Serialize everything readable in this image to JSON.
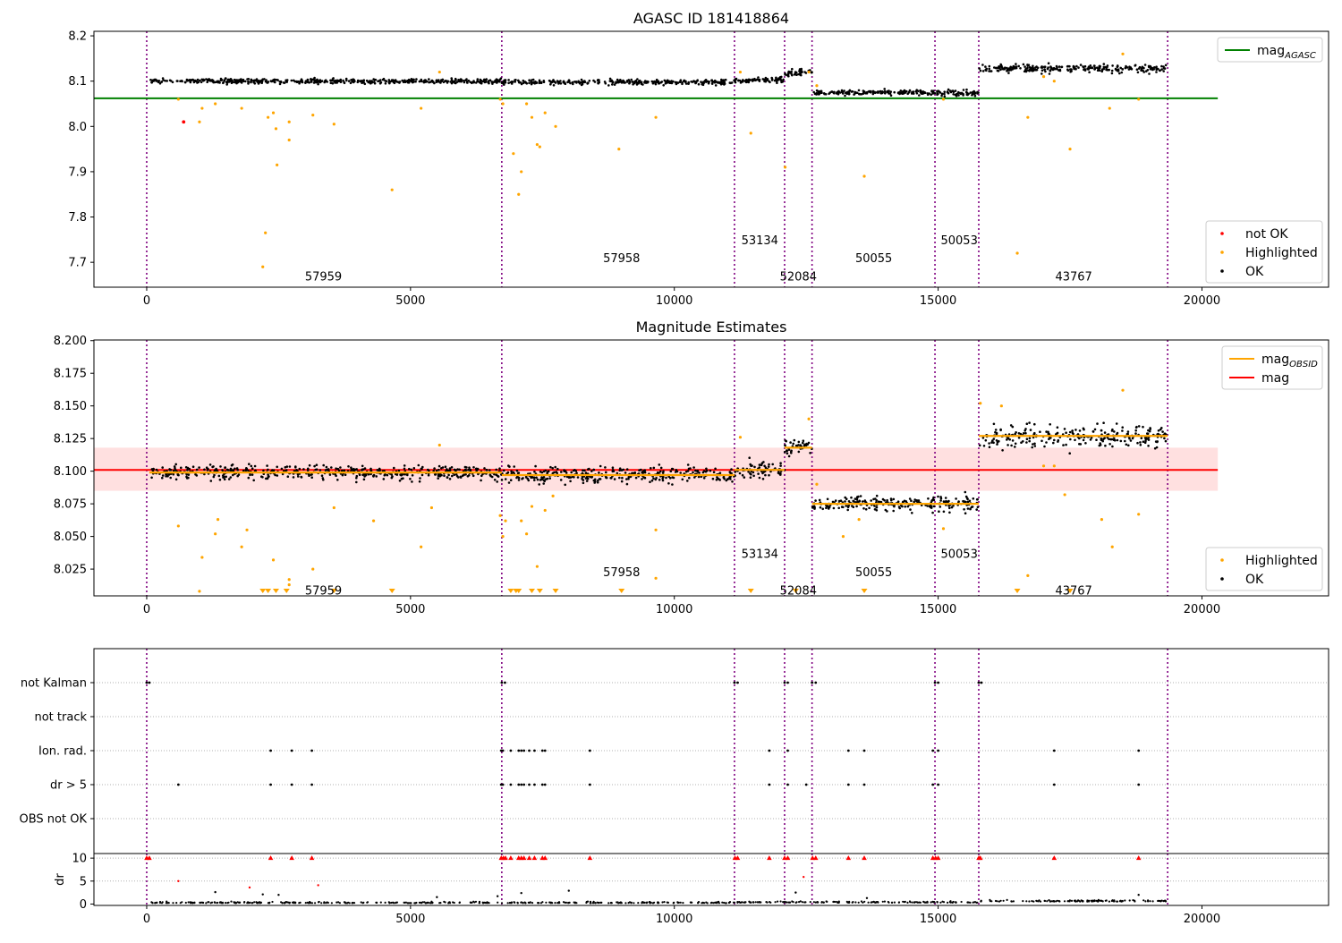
{
  "chart_data": [
    {
      "type": "scatter",
      "title": "AGASC ID 181418864",
      "xlim": [
        -1000,
        22400
      ],
      "ylim": [
        7.645,
        8.21
      ],
      "xticks": [
        0,
        5000,
        10000,
        15000,
        20000
      ],
      "yticks": [
        7.7,
        7.8,
        7.9,
        8.0,
        8.1,
        8.2
      ],
      "ytick_labels": [
        "7.7",
        "7.8",
        "7.9",
        "8.0",
        "8.1",
        "8.2"
      ],
      "obs_boundaries": [
        0,
        6730,
        11140,
        12090,
        12610,
        14940,
        15770,
        19350
      ],
      "obs_labels": [
        {
          "text": "57959",
          "x": 3350,
          "y": 7.67
        },
        {
          "text": "57958",
          "x": 9000,
          "y": 7.71
        },
        {
          "text": "53134",
          "x": 11620,
          "y": 7.75
        },
        {
          "text": "52084",
          "x": 12350,
          "y": 7.67
        },
        {
          "text": "50055",
          "x": 13780,
          "y": 7.71
        },
        {
          "text": "50053",
          "x": 15400,
          "y": 7.75
        },
        {
          "text": "43767",
          "x": 17570,
          "y": 7.67
        }
      ],
      "segments": [
        {
          "obsid": "57959",
          "x0": 50,
          "x1": 6730,
          "mean": 8.1,
          "spread": 0.006
        },
        {
          "obsid": "57958",
          "x0": 6730,
          "x1": 11140,
          "mean": 8.098,
          "spread": 0.006
        },
        {
          "obsid": "53134",
          "x0": 11140,
          "x1": 12090,
          "mean": 8.102,
          "spread": 0.007
        },
        {
          "obsid": "52084",
          "x0": 12090,
          "x1": 12610,
          "mean": 8.118,
          "spread": 0.008
        },
        {
          "obsid": "50055",
          "x0": 12610,
          "x1": 14940,
          "mean": 8.075,
          "spread": 0.006
        },
        {
          "obsid": "50053",
          "x0": 14940,
          "x1": 15770,
          "mean": 8.074,
          "spread": 0.007
        },
        {
          "obsid": "43767",
          "x0": 15770,
          "x1": 19350,
          "mean": 8.128,
          "spread": 0.009
        }
      ],
      "highlighted": [
        [
          600,
          8.06
        ],
        [
          1000,
          8.01
        ],
        [
          1050,
          8.04
        ],
        [
          1300,
          8.05
        ],
        [
          1800,
          8.04
        ],
        [
          2200,
          7.69
        ],
        [
          2250,
          7.765
        ],
        [
          2300,
          8.02
        ],
        [
          2400,
          8.03
        ],
        [
          2450,
          7.995
        ],
        [
          2470,
          7.915
        ],
        [
          2700,
          7.97
        ],
        [
          2700,
          8.01
        ],
        [
          3150,
          8.025
        ],
        [
          3550,
          8.005
        ],
        [
          4650,
          7.86
        ],
        [
          5200,
          8.04
        ],
        [
          5550,
          8.12
        ],
        [
          6700,
          8.06
        ],
        [
          6750,
          8.05
        ],
        [
          6950,
          7.94
        ],
        [
          7050,
          7.85
        ],
        [
          7100,
          7.9
        ],
        [
          7200,
          8.05
        ],
        [
          7300,
          8.02
        ],
        [
          7400,
          7.96
        ],
        [
          7450,
          7.955
        ],
        [
          7550,
          8.03
        ],
        [
          7750,
          8.0
        ],
        [
          8950,
          7.95
        ],
        [
          9650,
          8.02
        ],
        [
          11250,
          8.12
        ],
        [
          11450,
          7.985
        ],
        [
          12100,
          7.91
        ],
        [
          12550,
          8.12
        ],
        [
          12700,
          8.09
        ],
        [
          13600,
          7.89
        ],
        [
          15100,
          8.06
        ],
        [
          16700,
          8.02
        ],
        [
          16500,
          7.72
        ],
        [
          17000,
          8.11
        ],
        [
          17200,
          8.1
        ],
        [
          17500,
          7.95
        ],
        [
          18250,
          8.04
        ],
        [
          18500,
          8.16
        ],
        [
          18800,
          8.06
        ]
      ],
      "not_ok": [
        [
          700,
          8.01
        ]
      ],
      "hlines": [
        {
          "name": "mag_AGASC",
          "y": 8.062,
          "x0": -1000,
          "x1": 20300,
          "color": "#008000"
        }
      ],
      "legend_top": [
        {
          "label": "mag",
          "sub": "AGASC",
          "color": "#008000"
        }
      ],
      "legend_bottom": [
        {
          "label": "not OK",
          "color": "#ff0000"
        },
        {
          "label": "Highlighted",
          "color": "#ffa500"
        },
        {
          "label": "OK",
          "color": "#000000"
        }
      ]
    },
    {
      "type": "scatter",
      "title": "Magnitude Estimates",
      "xlim": [
        -1000,
        22400
      ],
      "ylim": [
        8.0045,
        8.2005
      ],
      "xticks": [
        0,
        5000,
        10000,
        15000,
        20000
      ],
      "yticks": [
        8.025,
        8.05,
        8.075,
        8.1,
        8.125,
        8.15,
        8.175,
        8.2
      ],
      "ytick_labels": [
        "8.025",
        "8.050",
        "8.075",
        "8.100",
        "8.125",
        "8.150",
        "8.175",
        "8.200"
      ],
      "obs_boundaries": [
        0,
        6730,
        11140,
        12090,
        12610,
        14940,
        15770,
        19350
      ],
      "obs_labels": [
        {
          "text": "57959",
          "x": 3350,
          "y": 8.009
        },
        {
          "text": "57958",
          "x": 9000,
          "y": 8.023
        },
        {
          "text": "53134",
          "x": 11620,
          "y": 8.037
        },
        {
          "text": "52084",
          "x": 12350,
          "y": 8.009
        },
        {
          "text": "50055",
          "x": 13780,
          "y": 8.023
        },
        {
          "text": "50053",
          "x": 15400,
          "y": 8.037
        },
        {
          "text": "43767",
          "x": 17570,
          "y": 8.009
        }
      ],
      "segments": [
        {
          "obsid": "57959",
          "x0": 50,
          "x1": 6730,
          "mean": 8.099,
          "spread": 0.006
        },
        {
          "obsid": "57958",
          "x0": 6730,
          "x1": 11140,
          "mean": 8.097,
          "spread": 0.006
        },
        {
          "obsid": "53134",
          "x0": 11140,
          "x1": 12090,
          "mean": 8.101,
          "spread": 0.007
        },
        {
          "obsid": "52084",
          "x0": 12090,
          "x1": 12610,
          "mean": 8.118,
          "spread": 0.008
        },
        {
          "obsid": "50055",
          "x0": 12610,
          "x1": 14940,
          "mean": 8.075,
          "spread": 0.006
        },
        {
          "obsid": "50053",
          "x0": 14940,
          "x1": 15770,
          "mean": 8.075,
          "spread": 0.007
        },
        {
          "obsid": "43767",
          "x0": 15770,
          "x1": 19350,
          "mean": 8.127,
          "spread": 0.009
        }
      ],
      "highlighted": [
        [
          600,
          8.058
        ],
        [
          1000,
          8.008
        ],
        [
          1050,
          8.034
        ],
        [
          1300,
          8.052
        ],
        [
          1350,
          8.063
        ],
        [
          1800,
          8.042
        ],
        [
          1900,
          8.055
        ],
        [
          2400,
          8.032
        ],
        [
          2700,
          8.017
        ],
        [
          2700,
          8.013
        ],
        [
          3150,
          8.025
        ],
        [
          3550,
          8.072
        ],
        [
          4300,
          8.062
        ],
        [
          5200,
          8.042
        ],
        [
          5550,
          8.12
        ],
        [
          5400,
          8.072
        ],
        [
          6700,
          8.066
        ],
        [
          6750,
          8.05
        ],
        [
          6800,
          8.062
        ],
        [
          7100,
          8.062
        ],
        [
          7200,
          8.052
        ],
        [
          7300,
          8.073
        ],
        [
          7400,
          8.027
        ],
        [
          7550,
          8.07
        ],
        [
          7700,
          8.081
        ],
        [
          9650,
          8.055
        ],
        [
          9650,
          8.018
        ],
        [
          11250,
          8.126
        ],
        [
          12550,
          8.14
        ],
        [
          12700,
          8.09
        ],
        [
          13200,
          8.05
        ],
        [
          13500,
          8.063
        ],
        [
          15100,
          8.056
        ],
        [
          15800,
          8.152
        ],
        [
          16200,
          8.15
        ],
        [
          16700,
          8.02
        ],
        [
          17000,
          8.104
        ],
        [
          17200,
          8.104
        ],
        [
          17400,
          8.082
        ],
        [
          18100,
          8.063
        ],
        [
          18300,
          8.042
        ],
        [
          18500,
          8.162
        ],
        [
          18800,
          8.067
        ]
      ],
      "downflags": [
        2200,
        2300,
        2450,
        2650,
        3550,
        4650,
        6900,
        7000,
        7050,
        7300,
        7450,
        7750,
        9000,
        11450,
        12300,
        13600,
        16500,
        17500
      ],
      "band": {
        "y0": 8.085,
        "y1": 8.118,
        "x0": -1000,
        "x1": 20300
      },
      "hlines": [
        {
          "name": "mag",
          "y": 8.101,
          "x0": -1000,
          "x1": 20300,
          "color": "#ff0000"
        }
      ],
      "legend_top": [
        {
          "label": "mag",
          "sub": "OBSID",
          "color": "#ffa500"
        },
        {
          "label": "mag",
          "sub": "",
          "color": "#ff0000"
        }
      ],
      "legend_bottom": [
        {
          "label": "Highlighted",
          "color": "#ffa500"
        },
        {
          "label": "OK",
          "color": "#000000"
        }
      ]
    },
    {
      "type": "scatter",
      "title": "",
      "xlim": [
        -1000,
        22400
      ],
      "xticks": [
        0,
        5000,
        10000,
        15000,
        20000
      ],
      "obs_boundaries": [
        0,
        6730,
        11140,
        12090,
        12610,
        14940,
        15770,
        19350
      ],
      "flag_rows": [
        "not Kalman",
        "not track",
        "Ion. rad.",
        "dr > 5",
        "OBS not OK"
      ],
      "flag_events": {
        "not Kalman": [
          0,
          50,
          6730,
          6790,
          11140,
          11200,
          12090,
          12150,
          12610,
          12680,
          14940,
          15000,
          15770,
          15820
        ],
        "not track": [],
        "Ion. rad.": [
          2350,
          2750,
          3130,
          6720,
          6750,
          6900,
          7050,
          7100,
          7150,
          7250,
          7350,
          7500,
          7550,
          8400,
          11800,
          12150,
          13300,
          13600,
          14900,
          15000,
          17200,
          18800
        ],
        "dr > 5": [
          600,
          2350,
          2750,
          3130,
          6720,
          6750,
          6900,
          7050,
          7100,
          7150,
          7250,
          7350,
          7500,
          7550,
          8400,
          11800,
          12150,
          12500,
          13300,
          13600,
          14900,
          15000,
          17200,
          18800
        ],
        "OBS not OK": []
      },
      "dr": {
        "ylim": [
          -0.3,
          11.0
        ],
        "yticks": [
          0,
          5,
          10
        ],
        "ylabel": "dr",
        "outliers": [
          [
            600,
            5.0
          ],
          [
            1300,
            2.6
          ],
          [
            1950,
            3.6
          ],
          [
            2200,
            2.1
          ],
          [
            2500,
            2.0
          ],
          [
            3250,
            4.1
          ],
          [
            5500,
            1.5
          ],
          [
            6650,
            1.7
          ],
          [
            7100,
            2.4
          ],
          [
            8000,
            2.9
          ],
          [
            12300,
            2.5
          ],
          [
            12450,
            5.9
          ],
          [
            13650,
            1.3
          ],
          [
            18800,
            2.0
          ]
        ],
        "red_at_cap": [
          0,
          50,
          2350,
          2750,
          3130,
          6720,
          6760,
          6800,
          6900,
          7050,
          7100,
          7150,
          7250,
          7350,
          7500,
          7550,
          8400,
          11150,
          11200,
          11800,
          12090,
          12150,
          12620,
          12680,
          13300,
          13600,
          14900,
          14950,
          15000,
          15770,
          15800,
          17200,
          18800
        ]
      }
    }
  ]
}
